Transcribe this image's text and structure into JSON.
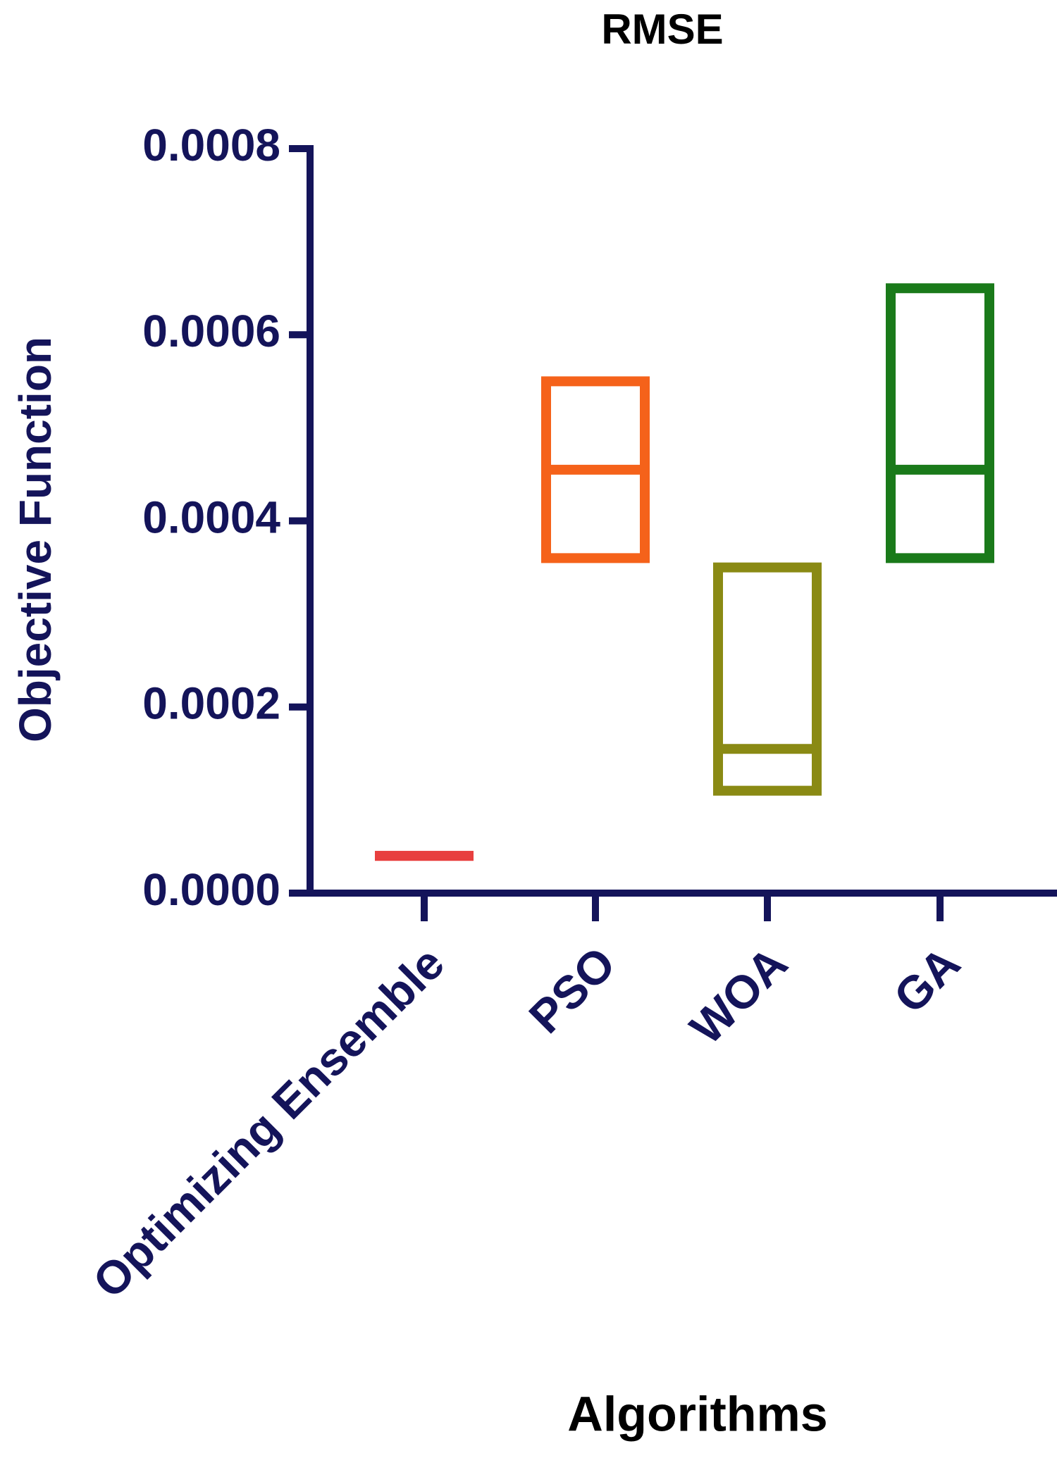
{
  "chart_data": {
    "type": "floating-box",
    "title": "RMSE",
    "y_label": "Objective Function",
    "x_label": "Algorithms",
    "categories": [
      "Optimizing Ensemble",
      "PSO",
      "WOA",
      "GA"
    ],
    "min": [
      4e-05,
      0.00036,
      0.00011,
      0.00036
    ],
    "median": [
      4e-05,
      0.000455,
      0.000155,
      0.000455
    ],
    "max": [
      4e-05,
      0.00055,
      0.00035,
      0.00065
    ],
    "colors": [
      "#e8403f",
      "#f5621a",
      "#8a8a14",
      "#1a7a1a"
    ],
    "axis_color": "#14145a",
    "ylim": [
      0,
      0.0008
    ],
    "yticks": [
      {
        "value": 0,
        "label": "0.0000"
      },
      {
        "value": 0.0002,
        "label": "0.0002"
      },
      {
        "value": 0.0004,
        "label": "0.0004"
      },
      {
        "value": 0.0006,
        "label": "0.0006"
      },
      {
        "value": 0.0008,
        "label": "0.0008"
      }
    ]
  }
}
